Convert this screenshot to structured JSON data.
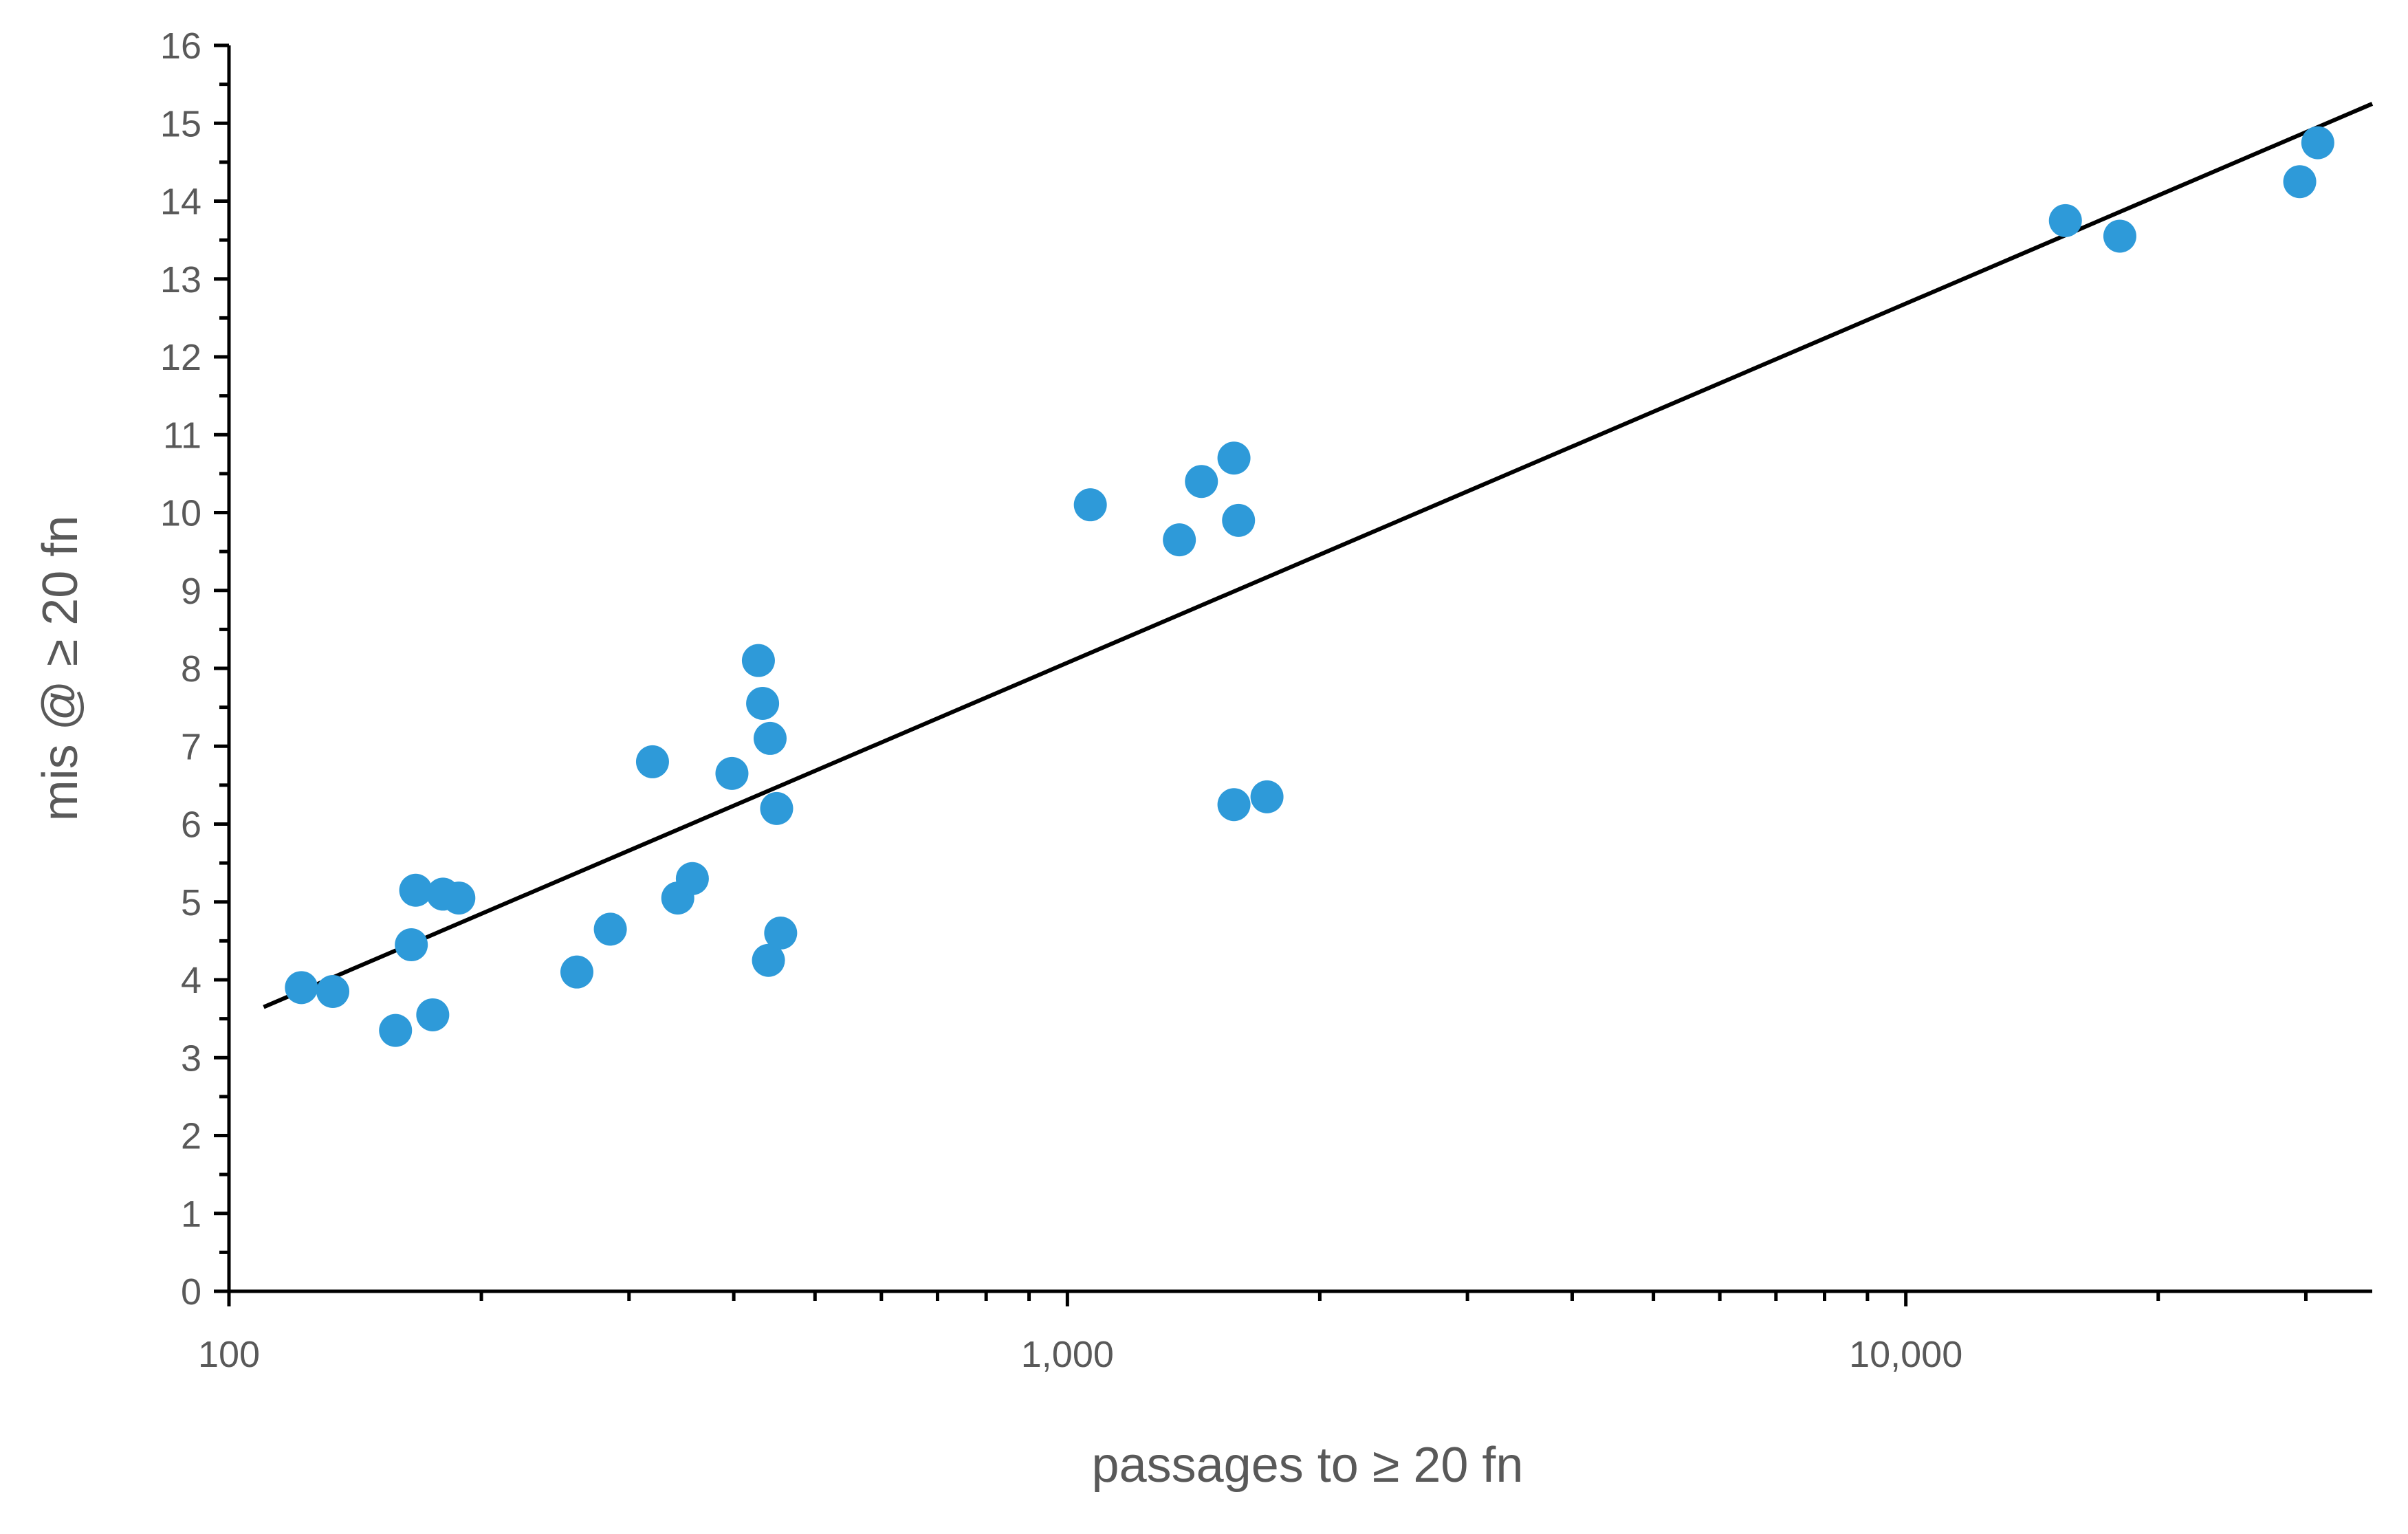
{
  "chart_data": {
    "type": "scatter",
    "title": "",
    "xlabel": "passages to ≥ 20 fn",
    "ylabel": "mis @ ≥ 20 fn",
    "x_scale": "log",
    "xlim": [
      100,
      36000
    ],
    "ylim": [
      0,
      16
    ],
    "x_ticks": [
      100,
      1000,
      10000
    ],
    "x_tick_labels": [
      "100",
      "1,000",
      "10,000"
    ],
    "y_ticks": [
      0,
      1,
      2,
      3,
      4,
      5,
      6,
      7,
      8,
      9,
      10,
      11,
      12,
      13,
      14,
      15,
      16
    ],
    "y_tick_labels": [
      "0",
      "1",
      "2",
      "3",
      "4",
      "5",
      "6",
      "7",
      "8",
      "9",
      "10",
      "11",
      "12",
      "13",
      "14",
      "15",
      "16"
    ],
    "grid": false,
    "legend": "none",
    "point_color": "#2e9ad9",
    "line_color": "#000000",
    "points": [
      {
        "x": 122,
        "y": 3.9
      },
      {
        "x": 133,
        "y": 3.85
      },
      {
        "x": 158,
        "y": 3.35
      },
      {
        "x": 165,
        "y": 4.45
      },
      {
        "x": 167,
        "y": 5.15
      },
      {
        "x": 175,
        "y": 3.55
      },
      {
        "x": 180,
        "y": 5.1
      },
      {
        "x": 188,
        "y": 5.05
      },
      {
        "x": 260,
        "y": 4.1
      },
      {
        "x": 285,
        "y": 4.65
      },
      {
        "x": 320,
        "y": 6.8
      },
      {
        "x": 343,
        "y": 5.05
      },
      {
        "x": 357,
        "y": 5.3
      },
      {
        "x": 398,
        "y": 6.65
      },
      {
        "x": 428,
        "y": 8.1
      },
      {
        "x": 433,
        "y": 7.55
      },
      {
        "x": 440,
        "y": 4.25
      },
      {
        "x": 442,
        "y": 7.1
      },
      {
        "x": 450,
        "y": 6.2
      },
      {
        "x": 455,
        "y": 4.6
      },
      {
        "x": 1065,
        "y": 10.1
      },
      {
        "x": 1360,
        "y": 9.65
      },
      {
        "x": 1445,
        "y": 10.4
      },
      {
        "x": 1580,
        "y": 10.7
      },
      {
        "x": 1580,
        "y": 6.25
      },
      {
        "x": 1600,
        "y": 9.9
      },
      {
        "x": 1730,
        "y": 6.35
      },
      {
        "x": 15500,
        "y": 13.75
      },
      {
        "x": 18000,
        "y": 13.55
      },
      {
        "x": 29500,
        "y": 14.25
      },
      {
        "x": 31000,
        "y": 14.75
      }
    ],
    "trendline": {
      "type": "logarithmic",
      "x_from": 110,
      "x_to": 36000,
      "y_from": 3.65,
      "y_to": 15.25
    }
  }
}
